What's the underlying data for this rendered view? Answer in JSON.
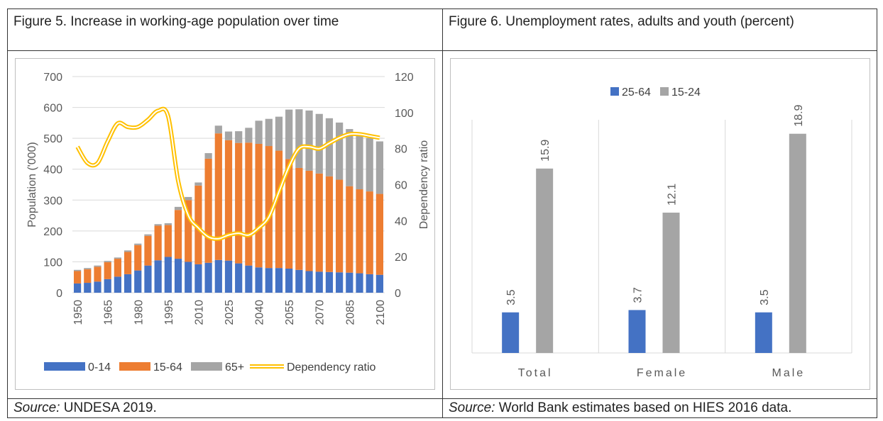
{
  "figure5": {
    "caption": "Figure 5. Increase in working-age population over time",
    "source_label": "Source:",
    "source_text": " UNDESA 2019.",
    "colors": {
      "c014": "#4472c4",
      "c1564": "#ed7d31",
      "c65": "#a5a5a5",
      "ratio": "#ffc000"
    }
  },
  "figure6": {
    "caption": "Figure 6. Unemployment rates, adults and youth (percent)",
    "source_label": "Source:",
    "source_text": " World Bank estimates based on HIES 2016 data.",
    "colors": {
      "adult": "#4472c4",
      "youth": "#a5a5a5"
    }
  },
  "chart_data": [
    {
      "type": "bar",
      "stacked": true,
      "x": [
        1950,
        1955,
        1960,
        1965,
        1970,
        1975,
        1980,
        1985,
        1990,
        1995,
        2000,
        2005,
        2010,
        2015,
        2020,
        2025,
        2030,
        2035,
        2040,
        2045,
        2050,
        2055,
        2060,
        2065,
        2070,
        2075,
        2080,
        2085,
        2090,
        2095,
        2100
      ],
      "x_tick_labels": [
        "1950",
        "1965",
        "1980",
        "1995",
        "2010",
        "2025",
        "2040",
        "2055",
        "2070",
        "2085",
        "2100"
      ],
      "ylabel": "Population ('000)",
      "y2label": "Dependency ratio",
      "ylim": [
        0,
        700
      ],
      "y_ticks": [
        0,
        100,
        200,
        300,
        400,
        500,
        600,
        700
      ],
      "y2lim": [
        0,
        120
      ],
      "y2_ticks": [
        0,
        20,
        40,
        60,
        80,
        100,
        120
      ],
      "series": [
        {
          "name": "0-14",
          "values": [
            30,
            32,
            36,
            44,
            52,
            60,
            72,
            88,
            105,
            116,
            110,
            100,
            92,
            97,
            106,
            104,
            95,
            88,
            82,
            80,
            80,
            78,
            74,
            70,
            68,
            67,
            66,
            65,
            63,
            60,
            58
          ]
        },
        {
          "name": "15-64",
          "values": [
            40,
            44,
            48,
            55,
            58,
            72,
            82,
            96,
            112,
            103,
            158,
            200,
            255,
            337,
            410,
            390,
            390,
            398,
            400,
            395,
            380,
            355,
            330,
            325,
            318,
            310,
            300,
            280,
            272,
            268,
            262
          ]
        },
        {
          "name": "65+",
          "values": [
            4,
            4,
            4,
            4,
            4,
            5,
            5,
            5,
            5,
            6,
            10,
            10,
            10,
            18,
            25,
            28,
            38,
            48,
            75,
            88,
            110,
            160,
            190,
            195,
            193,
            188,
            185,
            185,
            180,
            173,
            170
          ]
        }
      ],
      "line": {
        "name": "Dependency ratio",
        "values": [
          81,
          72,
          72,
          84,
          94,
          92,
          92,
          96,
          101,
          98,
          62,
          43,
          36,
          31,
          30,
          32,
          33,
          32,
          36,
          42,
          56,
          70,
          80,
          81,
          80,
          83,
          86,
          88,
          88,
          87,
          86
        ]
      },
      "legend_position": "bottom",
      "grid": true
    },
    {
      "type": "bar",
      "categories": [
        "Total",
        "Female",
        "Male"
      ],
      "ylim": [
        0,
        22
      ],
      "series": [
        {
          "name": "25-64",
          "values": [
            3.5,
            3.7,
            3.5
          ]
        },
        {
          "name": "15-24",
          "values": [
            15.9,
            12.1,
            18.9
          ]
        }
      ],
      "data_labels": true,
      "legend_position": "top",
      "grid": "vertical-category-separators"
    }
  ]
}
